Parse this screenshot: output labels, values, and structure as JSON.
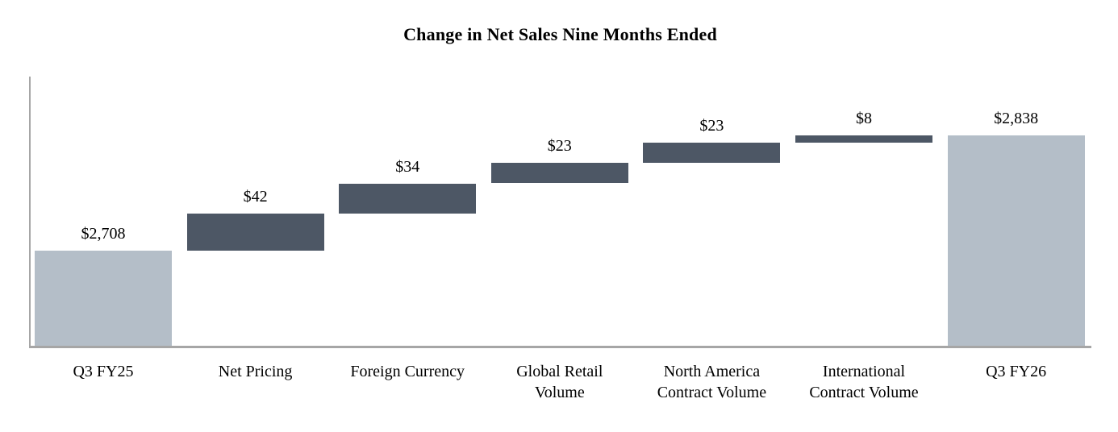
{
  "chart_data": {
    "type": "bar",
    "subtype": "waterfall",
    "title": "Change in Net Sales Nine Months Ended",
    "xlabel": "",
    "ylabel": "",
    "ylim": [
      2600,
      2905
    ],
    "grid": false,
    "legend": false,
    "categories": [
      "Q3 FY25",
      "Net Pricing",
      "Foreign Currency",
      "Global Retail Volume",
      "North America Contract Volume",
      "International Contract Volume",
      "Q3 FY26"
    ],
    "steps": [
      {
        "category_lines": [
          "Q3 FY25"
        ],
        "bar": "total",
        "value": 2708,
        "data_label": "$2,708"
      },
      {
        "category_lines": [
          "Net Pricing"
        ],
        "bar": "delta",
        "value": 42,
        "data_label": "$42"
      },
      {
        "category_lines": [
          "Foreign Currency"
        ],
        "bar": "delta",
        "value": 34,
        "data_label": "$34"
      },
      {
        "category_lines": [
          "Global Retail",
          "Volume"
        ],
        "bar": "delta",
        "value": 23,
        "data_label": "$23"
      },
      {
        "category_lines": [
          "North America",
          "Contract Volume"
        ],
        "bar": "delta",
        "value": 23,
        "data_label": "$23"
      },
      {
        "category_lines": [
          "International",
          "Contract Volume"
        ],
        "bar": "delta",
        "value": 8,
        "data_label": "$8"
      },
      {
        "category_lines": [
          "Q3 FY26"
        ],
        "bar": "total",
        "value": 2838,
        "data_label": "$2,838"
      }
    ],
    "colors": {
      "total_bar": "#b4bec8",
      "delta_bar": "#4d5765",
      "axis_line": "#a6a6a6",
      "text": "#000000",
      "background": "#ffffff"
    }
  }
}
